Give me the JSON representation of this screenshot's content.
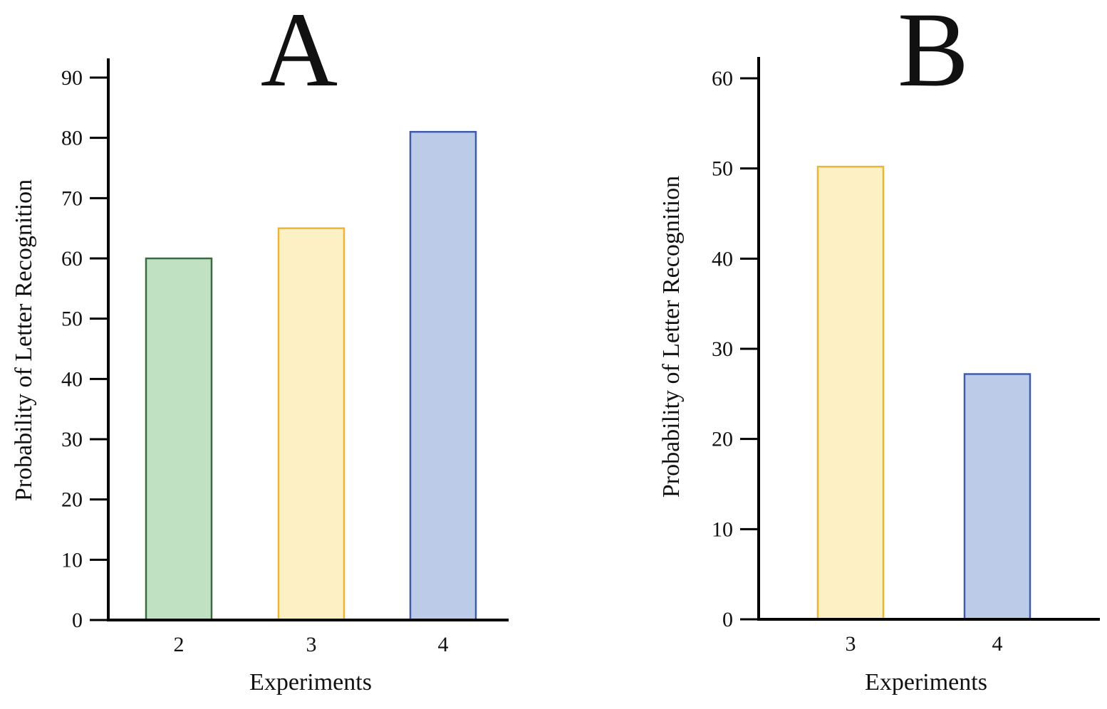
{
  "chart_data": [
    {
      "type": "bar",
      "panel_label": "A",
      "categories": [
        "2",
        "3",
        "4"
      ],
      "values": [
        60,
        65,
        81
      ],
      "colors": [
        "#c1e2c2",
        "#fdf0c4",
        "#bccce8"
      ],
      "edge_colors": [
        "#3b6b45",
        "#eab634",
        "#3e5ca8"
      ],
      "xlabel": "Experiments",
      "ylabel": "Probability of Letter Recognition",
      "ylim": [
        0,
        90
      ],
      "yticks": [
        0,
        10,
        20,
        30,
        40,
        50,
        60,
        70,
        80,
        90
      ],
      "yticks_labels": [
        "0",
        "10",
        "20",
        "30",
        "40",
        "50",
        "60",
        "70",
        "80",
        "90"
      ],
      "grid": false
    },
    {
      "type": "bar",
      "panel_label": "B",
      "categories": [
        "3",
        "4"
      ],
      "values": [
        50.2,
        27.2
      ],
      "colors": [
        "#fdf0c4",
        "#bccce8"
      ],
      "edge_colors": [
        "#eab634",
        "#3e5ca8"
      ],
      "xlabel": "Experiments",
      "ylabel": "Probability of Letter Recognition",
      "ylim": [
        0,
        60
      ],
      "yticks": [
        0,
        10,
        20,
        30,
        40,
        50,
        60
      ],
      "yticks_labels": [
        "0",
        "10",
        "20",
        "30",
        "40",
        "50",
        "60"
      ],
      "grid": false
    }
  ]
}
